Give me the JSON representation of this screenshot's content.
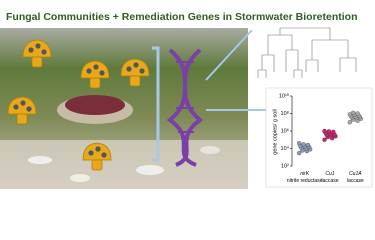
{
  "title": "Fungal Communities + Remediation Genes in Stormwater Bioretention",
  "chart_data": {
    "type": "strip",
    "log_y": true,
    "y_label": "gene copies/ g soil",
    "categories": [
      {
        "gene": "nirK",
        "product": "nitrite reductase"
      },
      {
        "gene": "Cu1",
        "product": "laccase"
      },
      {
        "gene": "Cu1A",
        "product": "laccase"
      }
    ],
    "colors": [
      "#8c9db5",
      "#c8276c",
      "#a9a9a9"
    ],
    "values": [
      [
        3000,
        5000,
        6000,
        8000,
        10000,
        12000,
        15000,
        18000,
        20000,
        25000,
        30000,
        40000
      ],
      [
        100000,
        150000,
        200000,
        250000,
        300000,
        350000,
        400000,
        500000,
        600000,
        800000,
        900000,
        1000000
      ],
      [
        10000000,
        15000000,
        20000000,
        25000000,
        30000000,
        35000000,
        40000000,
        45000000,
        50000000,
        60000000,
        70000000,
        80000000,
        100000000,
        120000000
      ]
    ],
    "ylim": [
      100,
      10000000000
    ],
    "yticks": [
      {
        "value": 100,
        "label": "10²"
      },
      {
        "value": 10000,
        "label": "10⁴"
      },
      {
        "value": 1000000,
        "label": "10⁶"
      },
      {
        "value": 100000000,
        "label": "10⁸"
      },
      {
        "value": 10000000000,
        "label": "10¹⁰"
      }
    ]
  }
}
